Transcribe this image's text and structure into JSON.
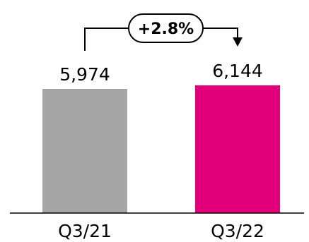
{
  "chart_data": {
    "type": "bar",
    "categories": [
      "Q3/21",
      "Q3/22"
    ],
    "values": [
      5974,
      6144
    ],
    "value_labels": [
      "5,974",
      "6,144"
    ],
    "colors": [
      "#a6a6a6",
      "#e2007a"
    ],
    "change_annotation": "+2.8%",
    "title": "",
    "xlabel": "",
    "ylabel": "",
    "grid": false,
    "legend": "none"
  }
}
